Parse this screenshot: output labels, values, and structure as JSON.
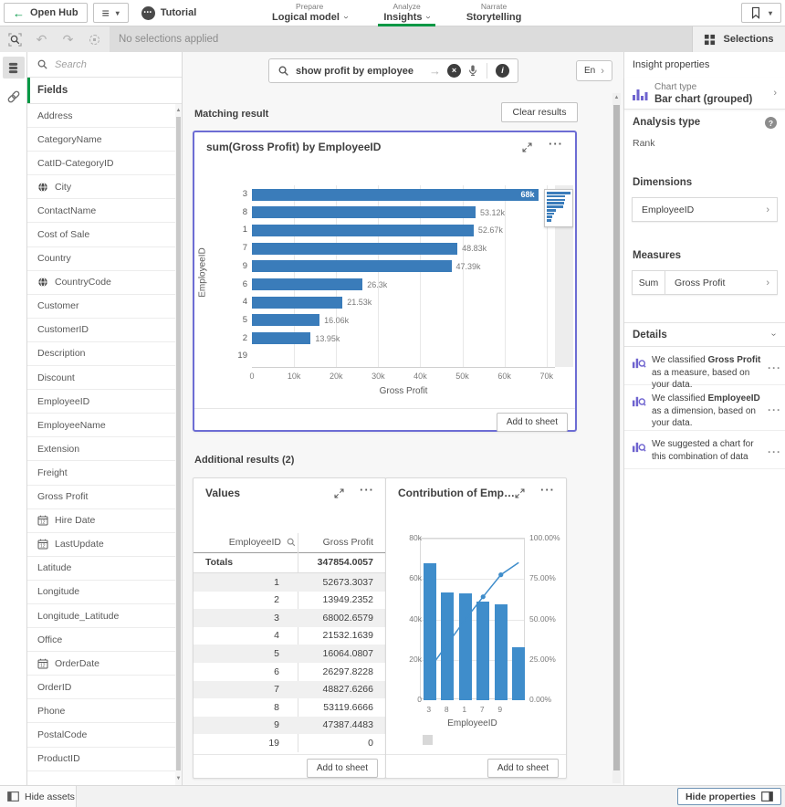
{
  "topbar": {
    "open_hub": "Open Hub",
    "app_title": "Tutorial",
    "nav": [
      {
        "section": "Prepare",
        "label": "Logical model",
        "caret": true,
        "active": false
      },
      {
        "section": "Analyze",
        "label": "Insights",
        "caret": true,
        "active": true
      },
      {
        "section": "Narrate",
        "label": "Storytelling",
        "caret": false,
        "active": false
      }
    ]
  },
  "selections_bar": {
    "status": "No selections applied",
    "selections_label": "Selections"
  },
  "assets": {
    "search_placeholder": "Search",
    "header": "Fields",
    "fields": [
      {
        "label": "Address"
      },
      {
        "label": "CategoryName"
      },
      {
        "label": "CatID-CategoryID"
      },
      {
        "label": "City",
        "icon": "globe"
      },
      {
        "label": "ContactName"
      },
      {
        "label": "Cost of Sale"
      },
      {
        "label": "Country"
      },
      {
        "label": "CountryCode",
        "icon": "globe"
      },
      {
        "label": "Customer"
      },
      {
        "label": "CustomerID"
      },
      {
        "label": "Description"
      },
      {
        "label": "Discount"
      },
      {
        "label": "EmployeeID"
      },
      {
        "label": "EmployeeName"
      },
      {
        "label": "Extension"
      },
      {
        "label": "Freight"
      },
      {
        "label": "Gross Profit"
      },
      {
        "label": "Hire Date",
        "icon": "calendar"
      },
      {
        "label": "LastUpdate",
        "icon": "calendar"
      },
      {
        "label": "Latitude"
      },
      {
        "label": "Longitude"
      },
      {
        "label": "Longitude_Latitude"
      },
      {
        "label": "Office"
      },
      {
        "label": "OrderDate",
        "icon": "calendar"
      },
      {
        "label": "OrderID"
      },
      {
        "label": "Phone"
      },
      {
        "label": "PostalCode"
      },
      {
        "label": "ProductID"
      }
    ]
  },
  "search": {
    "query": "show profit by employee",
    "language": "En"
  },
  "results": {
    "matching_label": "Matching result",
    "clear_button": "Clear results",
    "additional_label": "Additional results (2)",
    "add_to_sheet": "Add to sheet"
  },
  "values_card": {
    "title": "Values",
    "columns": [
      "EmployeeID",
      "Gross Profit"
    ],
    "totals_label": "Totals",
    "totals_value": "347854.0057",
    "rows": [
      [
        "1",
        "52673.3037"
      ],
      [
        "2",
        "13949.2352"
      ],
      [
        "3",
        "68002.6579"
      ],
      [
        "4",
        "21532.1639"
      ],
      [
        "5",
        "16064.0807"
      ],
      [
        "6",
        "26297.8228"
      ],
      [
        "7",
        "48827.6266"
      ],
      [
        "8",
        "53119.6666"
      ],
      [
        "9",
        "47387.4483"
      ],
      [
        "19",
        "0"
      ]
    ]
  },
  "properties": {
    "header": "Insight properties",
    "chart_type_label": "Chart type",
    "chart_type_value": "Bar chart (grouped)",
    "analysis_type_label": "Analysis type",
    "analysis_type_value": "Rank",
    "dimensions_label": "Dimensions",
    "dimension_value": "EmployeeID",
    "measures_label": "Measures",
    "measure_aggregation": "Sum",
    "measure_field": "Gross Profit",
    "details_label": "Details",
    "details": [
      {
        "pre": "We classified ",
        "bold": "Gross Profit",
        "post": " as a measure, based on your data."
      },
      {
        "pre": "We classified ",
        "bold": "EmployeeID",
        "post": " as a dimension, based on your data."
      },
      {
        "pre": "We suggested a chart for this combination of data",
        "bold": "",
        "post": ""
      }
    ]
  },
  "footer": {
    "hide_assets": "Hide assets",
    "hide_properties": "Hide properties"
  },
  "colors": {
    "accent_green": "#009845",
    "bar_blue": "#3a7cba",
    "pareto_blue": "#3f8dcb",
    "selected_border_purple": "#6d6dd4",
    "icon_purple": "#6e63cf"
  },
  "icons": {
    "back": "left-arrow",
    "menu": "hamburger",
    "bookmark": "bookmark outline",
    "smart_search": "magnifier in dashed frame",
    "undo": "curved arrow left",
    "redo": "curved arrow right",
    "clear_selections": "dashed circle",
    "selections_tool": "grid of squares",
    "data_assets": "database cylinder",
    "links": "chain link",
    "globe": "geo field",
    "calendar": "date field",
    "search": "magnifier",
    "submit": "right arrow",
    "clear_search": "x in dark circle",
    "voice": "microphone",
    "info": "i in dark circle",
    "expand": "diagonal arrows",
    "more": "three dots",
    "chart_type": "purple grouped bars",
    "insight_advisor": "purple bars with magnifier",
    "help": "question mark circle",
    "panel_left": "sidebar left",
    "panel_right": "sidebar right"
  },
  "chart_data": [
    {
      "type": "bar",
      "orientation": "horizontal",
      "title": "sum(Gross Profit) by EmployeeID",
      "categories": [
        "3",
        "8",
        "1",
        "7",
        "9",
        "6",
        "4",
        "5",
        "2",
        "19"
      ],
      "values": [
        68002.6579,
        53119.6666,
        52673.3037,
        48827.6266,
        47387.4483,
        26297.8228,
        21532.1639,
        16064.0807,
        13949.2352,
        0
      ],
      "value_labels": [
        "68k",
        "53.12k",
        "52.67k",
        "48.83k",
        "47.39k",
        "26.3k",
        "21.53k",
        "16.06k",
        "13.95k",
        ""
      ],
      "xlabel": "Gross Profit",
      "ylabel": "EmployeeID",
      "xlim": [
        0,
        72000
      ],
      "xticks": [
        0,
        10000,
        20000,
        30000,
        40000,
        50000,
        60000,
        70000
      ],
      "xtick_labels": [
        "0",
        "10k",
        "20k",
        "30k",
        "40k",
        "50k",
        "60k",
        "70k"
      ],
      "grid": true,
      "has_scroll_navigator": true
    },
    {
      "type": "pareto (bar+line)",
      "title": "Contribution of Employe...",
      "categories": [
        "3",
        "8",
        "1",
        "7",
        "9",
        "6"
      ],
      "series": [
        {
          "name": "Gross Profit (bars)",
          "values": [
            68002.6579,
            53119.6666,
            52673.3037,
            48827.6266,
            47387.4483,
            26297.8228
          ]
        },
        {
          "name": "Cumulative % (line)",
          "values": [
            19.55,
            34.82,
            49.96,
            64.0,
            77.62,
            85.18
          ]
        }
      ],
      "xlabel": "EmployeeID",
      "left_axis": {
        "lim": [
          0,
          80000
        ],
        "ticks": [
          0,
          20000,
          40000,
          60000,
          80000
        ],
        "tick_labels": [
          "0",
          "20k",
          "40k",
          "60k",
          "80k"
        ]
      },
      "right_axis": {
        "lim": [
          0,
          100
        ],
        "ticks": [
          0,
          25,
          50,
          75,
          100
        ],
        "tick_labels": [
          "0.00%",
          "25.00%",
          "50.00%",
          "75.00%",
          "100.00%"
        ]
      },
      "visible_x_labels": [
        "3",
        "8",
        "1",
        "7",
        "9"
      ],
      "line_marker_indices": [
        3,
        4
      ],
      "legend_swatch": "gray square (unlabeled)",
      "grid": true
    }
  ]
}
